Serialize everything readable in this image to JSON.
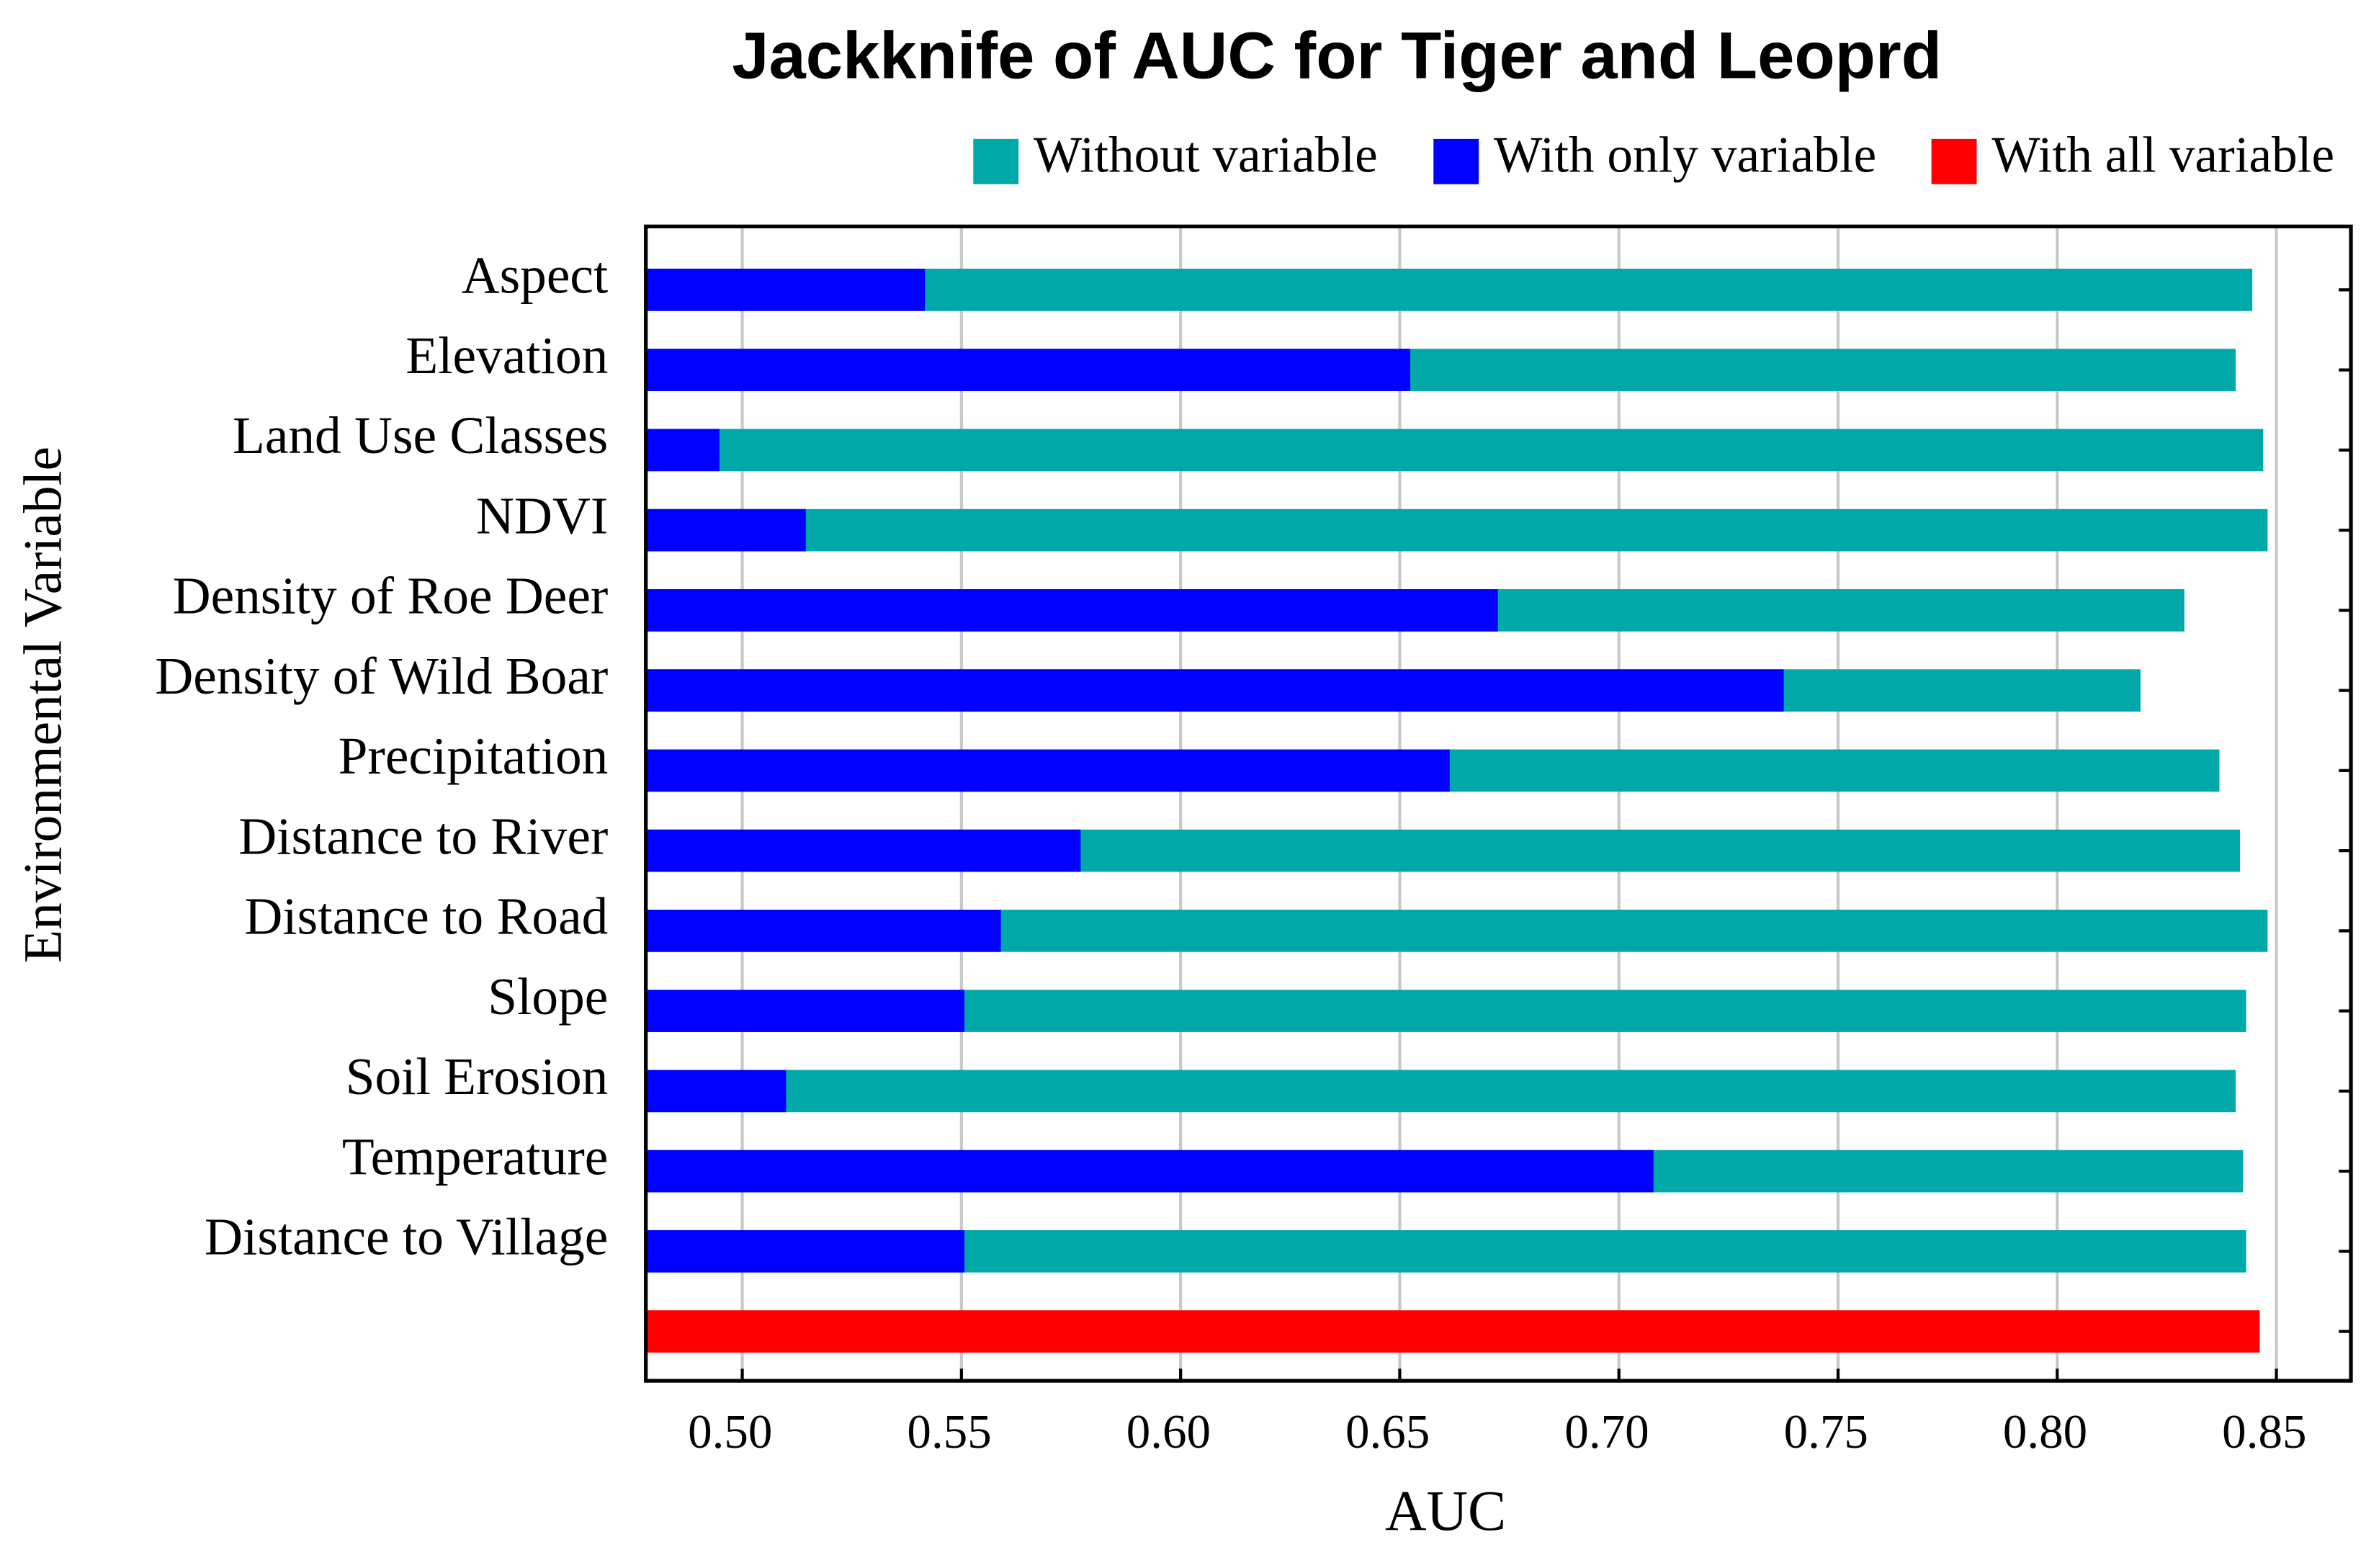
{
  "chart_data": {
    "type": "bar",
    "orientation": "horizontal",
    "title": "Jackknife of AUC for Tiger and Leoprd",
    "x_label": "AUC",
    "y_label": "Environmental Variable",
    "categories": [
      "Aspect",
      "Elevation",
      "Land Use Classes",
      "NDVI",
      "Density of Roe Deer",
      "Density of Wild Boar",
      "Precipitation",
      "Distance to River",
      "Distance to Road",
      "Slope",
      "Soil Erosion",
      "Temperature",
      "Distance to Village",
      null
    ],
    "series": [
      {
        "name": "Without variable",
        "color": "#00a8a8",
        "values": [
          0.8445,
          0.8407,
          0.847,
          0.848,
          0.829,
          0.819,
          0.837,
          0.8417,
          0.848,
          0.8431,
          0.8407,
          0.8424,
          0.8431,
          null
        ]
      },
      {
        "name": "With only variable",
        "color": "#0000ff",
        "values": [
          0.5417,
          0.6524,
          0.4948,
          0.5145,
          0.6724,
          0.7376,
          0.6614,
          0.5772,
          0.559,
          0.5507,
          0.51,
          0.7079,
          0.5507,
          null
        ]
      },
      {
        "name": "With all variable",
        "color": "#ff0000",
        "values": [
          null,
          null,
          null,
          null,
          null,
          null,
          null,
          null,
          null,
          null,
          null,
          null,
          null,
          0.8462
        ]
      }
    ],
    "xlim": [
      0.478,
      0.867
    ],
    "xticks": [
      {
        "value": 0.5,
        "label": "0.50"
      },
      {
        "value": 0.55,
        "label": "0.55"
      },
      {
        "value": 0.6,
        "label": "0.60"
      },
      {
        "value": 0.65,
        "label": "0.65"
      },
      {
        "value": 0.7,
        "label": "0.70"
      },
      {
        "value": 0.75,
        "label": "0.75"
      },
      {
        "value": 0.8,
        "label": "0.80"
      },
      {
        "value": 0.85,
        "label": "0.85"
      }
    ],
    "grid": true
  }
}
